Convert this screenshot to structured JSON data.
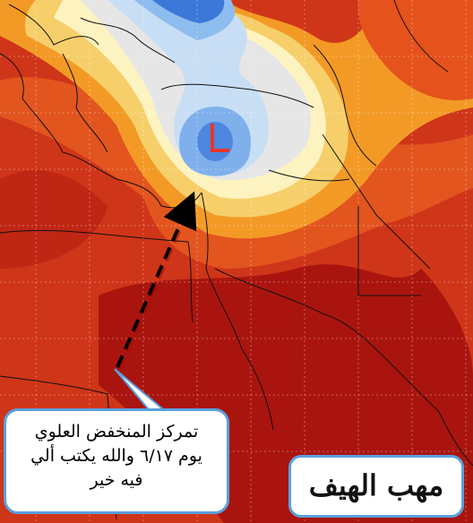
{
  "map": {
    "low_marker": "L",
    "colors": {
      "deep_blue": "#3c78d8",
      "mid_blue": "#7fb0ec",
      "light_blue": "#c8def5",
      "gray": "#e6e6e6",
      "cream": "#fdf3c0",
      "yellow": "#f6cf6b",
      "orange": "#f39a26",
      "red_orange": "#e0521e",
      "red": "#cc3218",
      "dark_red": "#a8140e",
      "marker": "#e8352a"
    }
  },
  "callout": {
    "line1": "تمركز المنخفض العلوي",
    "line2": "يوم ٦/١٧ والله يكتب ألي",
    "line3": "فيه خير"
  },
  "badge": {
    "text": "مهب الهيف"
  }
}
